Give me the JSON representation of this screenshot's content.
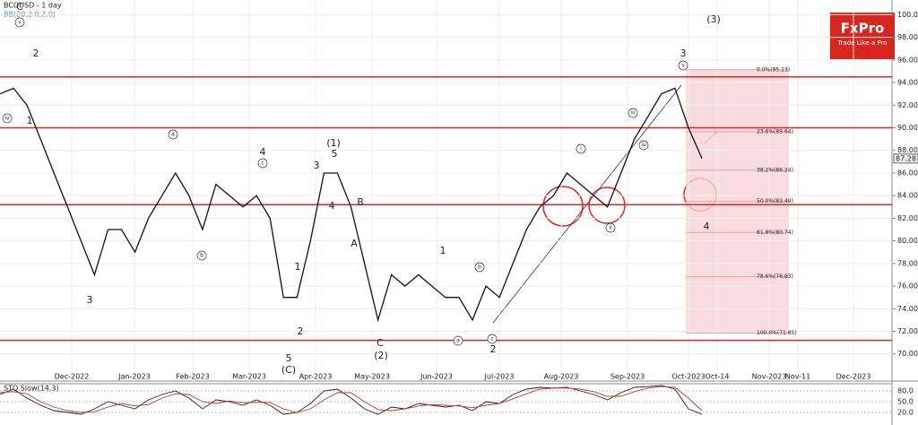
{
  "chart_data": [
    {
      "type": "line",
      "title": "BCOUSD - 1 day",
      "subtitle": "BB(20,2.0,2.0)",
      "ylim": [
        67.6,
        101.3
      ],
      "yticks": [
        {
          "value": 100,
          "label": "100.00"
        },
        {
          "value": 98,
          "label": "98.00"
        },
        {
          "value": 96,
          "label": "96.00"
        },
        {
          "value": 94,
          "label": "94.00"
        },
        {
          "value": 92,
          "label": "92.00"
        },
        {
          "value": 90,
          "label": "90.00"
        },
        {
          "value": 88,
          "label": "88.00"
        },
        {
          "value": 86,
          "label": "86.00"
        },
        {
          "value": 84,
          "label": "84.00"
        },
        {
          "value": 82,
          "label": "82.00"
        },
        {
          "value": 80,
          "label": "80.00"
        },
        {
          "value": 78,
          "label": "78.00"
        },
        {
          "value": 76,
          "label": "76.00"
        },
        {
          "value": 74,
          "label": "74.00"
        },
        {
          "value": 72,
          "label": "72.00"
        },
        {
          "value": 70,
          "label": "70.00"
        }
      ],
      "x_labels": [
        "Dec-2022",
        "Jan-2023",
        "Feb-2023",
        "Mar-2023",
        "Apr-2023",
        "May-2023",
        "Jun-2023",
        "Jul-2023",
        "Aug-2023",
        "Sep-2023",
        "Oct-2023",
        "Oct-14",
        "Nov-2023",
        "Nov-11",
        "Dec-2023"
      ],
      "grid": true,
      "series": [
        {
          "color": "#111111",
          "values": [
            93,
            93.5,
            92,
            89,
            86,
            83,
            80,
            77,
            81,
            81,
            79,
            82,
            84,
            86,
            84,
            81,
            85,
            84,
            83,
            84,
            82,
            75,
            75,
            80,
            86,
            86,
            83,
            78,
            73,
            77,
            76,
            77,
            76,
            75,
            75,
            73,
            76,
            75,
            78,
            81,
            83,
            84,
            86,
            85,
            84,
            83,
            86,
            89,
            91,
            93,
            93.5,
            90,
            87.3
          ]
        }
      ],
      "hlines": [
        94.5,
        90,
        83.2,
        71.2
      ],
      "hline_color": "#e8231f",
      "fib_levels": [
        {
          "value": 95.13,
          "label": "0.0%(95.13)"
        },
        {
          "value": 89.64,
          "label": "23.6%(89.64)"
        },
        {
          "value": 86.24,
          "label": "38.2%(86.24)"
        },
        {
          "value": 83.49,
          "label": "50.0%(83.49)"
        },
        {
          "value": 80.74,
          "label": "61.8%(80.74)"
        },
        {
          "value": 76.83,
          "label": "78.6%(76.83)"
        },
        {
          "value": 71.85,
          "label": "100.0%(71.85)"
        }
      ],
      "last_price": {
        "value": 87.28,
        "label": "87.28"
      },
      "annotations": [
        "C",
        "v",
        "2",
        "1",
        "iv",
        "3",
        "a",
        "b",
        "4",
        "c",
        "3",
        "(1)",
        "5",
        "4",
        "B",
        "A",
        "1",
        "2",
        "5",
        "(C)",
        "C",
        "(2)",
        "1",
        "b",
        "a",
        "c",
        "2",
        "i",
        "ii",
        "iii",
        "iv",
        "3",
        "v",
        "(3)",
        "4"
      ],
      "logo": {
        "name": "FxPro",
        "tagline": "Trade Like a Pro"
      }
    },
    {
      "type": "line",
      "title": "STO Slow(14,3)",
      "ylim": [
        0,
        100
      ],
      "yticks": [
        {
          "value": 80,
          "label": "80.0"
        },
        {
          "value": 50,
          "label": "50.0"
        },
        {
          "value": 20,
          "label": "20.0"
        }
      ],
      "series": [
        {
          "color": "#222222",
          "values": [
            70,
            85,
            60,
            40,
            25,
            20,
            15,
            30,
            50,
            40,
            30,
            55,
            70,
            80,
            60,
            30,
            55,
            50,
            40,
            55,
            40,
            15,
            20,
            45,
            80,
            85,
            60,
            30,
            15,
            35,
            30,
            45,
            40,
            35,
            40,
            25,
            50,
            45,
            70,
            85,
            90,
            88,
            90,
            80,
            70,
            55,
            75,
            90,
            92,
            95,
            85,
            30,
            15
          ]
        },
        {
          "color": "#c0392b",
          "values": [
            75,
            78,
            72,
            50,
            35,
            25,
            20,
            22,
            35,
            45,
            38,
            42,
            60,
            72,
            70,
            50,
            45,
            52,
            47,
            48,
            48,
            30,
            20,
            30,
            55,
            75,
            75,
            50,
            28,
            25,
            30,
            38,
            42,
            40,
            38,
            33,
            40,
            45,
            58,
            72,
            85,
            88,
            88,
            85,
            78,
            65,
            65,
            78,
            88,
            92,
            90,
            60,
            25
          ]
        }
      ]
    }
  ]
}
